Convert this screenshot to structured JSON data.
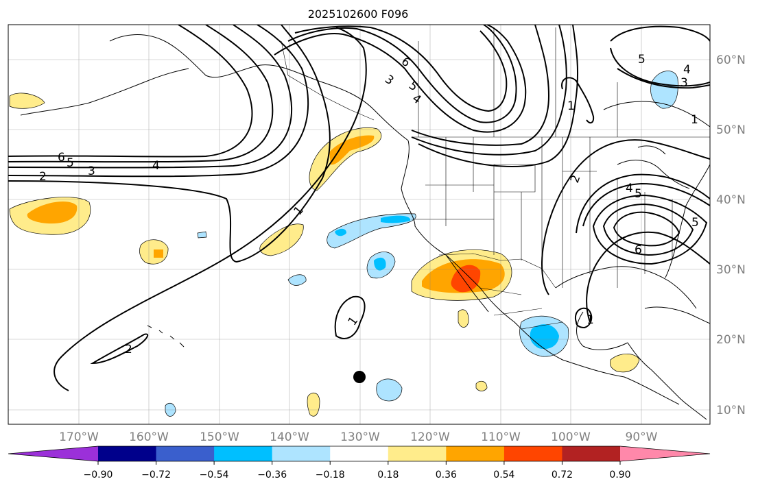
{
  "title": "2025102600 F096",
  "map": {
    "longitude_labels": [
      "170°W",
      "160°W",
      "150°W",
      "140°W",
      "130°W",
      "120°W",
      "110°W",
      "100°W",
      "90°W"
    ],
    "latitude_labels": [
      "60°N",
      "50°N",
      "40°N",
      "30°N",
      "20°N",
      "10°N"
    ],
    "contour_labels": [
      "6",
      "5",
      "3",
      "2",
      "4",
      "1",
      "2",
      "1",
      "3",
      "5",
      "6",
      "4",
      "1",
      "2",
      "5",
      "4",
      "3",
      "1",
      "4",
      "5",
      "6",
      "1",
      "5"
    ],
    "point_marker": "black-dot"
  },
  "colorbar": {
    "ticks": [
      "−0.90",
      "−0.72",
      "−0.54",
      "−0.36",
      "−0.18",
      "0.18",
      "0.36",
      "0.54",
      "0.72",
      "0.90"
    ],
    "colors": [
      "#9b30d9",
      "#00008b",
      "#3a5fcd",
      "#00bfff",
      "#aee4ff",
      "#ffffff",
      "#ffec8b",
      "#ffa500",
      "#ff4500",
      "#b22222",
      "#ff88aa"
    ]
  }
}
